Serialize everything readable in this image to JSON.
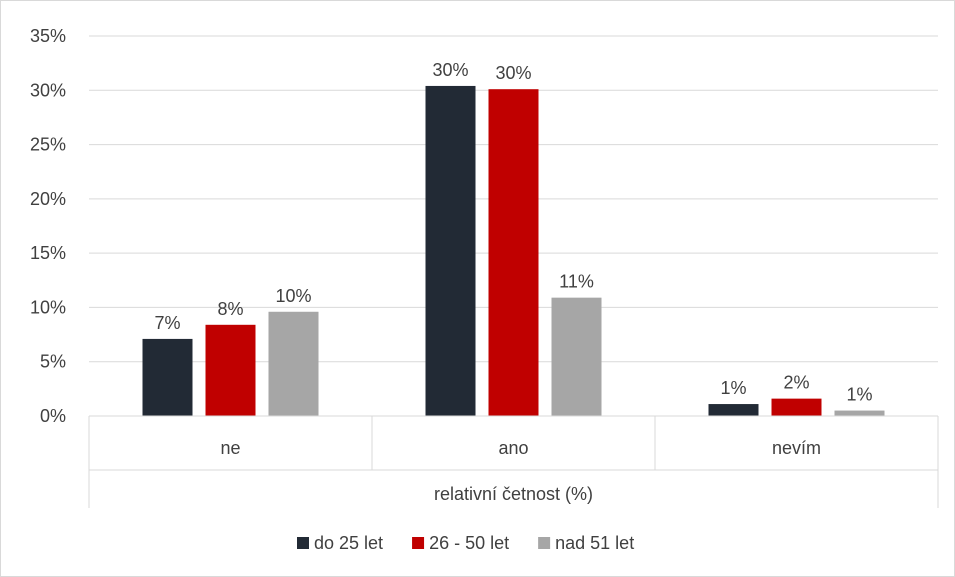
{
  "chart_data": {
    "type": "bar",
    "categories": [
      "ne",
      "ano",
      "nevím"
    ],
    "group_label": "relativní četnost (%)",
    "ylim": [
      0,
      35
    ],
    "yticks": [
      0,
      5,
      10,
      15,
      20,
      25,
      30,
      35
    ],
    "ytick_suffix": "%",
    "grid": true,
    "legend_position": "bottom",
    "series": [
      {
        "name": "do 25 let",
        "color": "#222a35",
        "values": [
          7.1,
          30.4,
          1.1
        ],
        "labels": [
          "7%",
          "30%",
          "1%"
        ]
      },
      {
        "name": "26 - 50 let",
        "color": "#c00000",
        "values": [
          8.4,
          30.1,
          1.6
        ],
        "labels": [
          "8%",
          "30%",
          "2%"
        ]
      },
      {
        "name": "nad 51 let",
        "color": "#a6a6a6",
        "values": [
          9.6,
          10.9,
          0.5
        ],
        "labels": [
          "10%",
          "11%",
          "1%"
        ]
      }
    ]
  }
}
